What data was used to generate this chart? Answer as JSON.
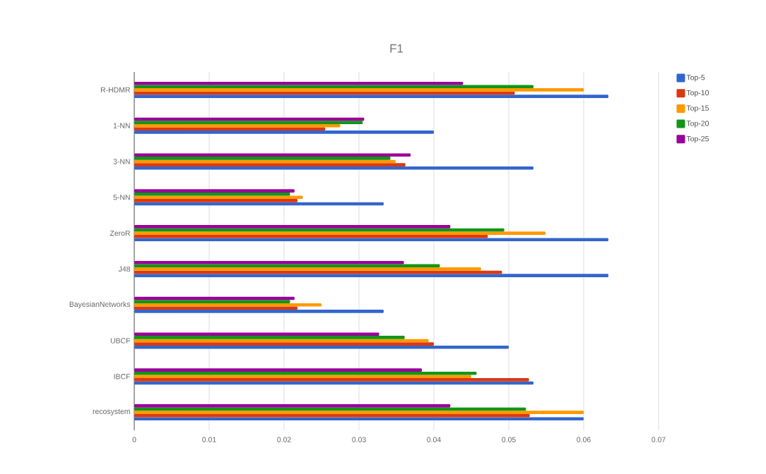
{
  "chart_data": {
    "type": "bar",
    "orientation": "horizontal",
    "title": "F1",
    "categories": [
      "R-HDMR",
      "1-NN",
      "3-NN",
      "5-NN",
      "ZeroR",
      "J48",
      "BayesianNetworks",
      "UBCF",
      "IBCF",
      "recosystem"
    ],
    "series": [
      {
        "name": "Top-5",
        "color": "#3366cc",
        "values": [
          0.0633,
          0.04,
          0.0533,
          0.0333,
          0.0633,
          0.0633,
          0.0333,
          0.05,
          0.0533,
          0.06
        ]
      },
      {
        "name": "Top-10",
        "color": "#dc3912",
        "values": [
          0.0508,
          0.0255,
          0.0362,
          0.0218,
          0.0472,
          0.0491,
          0.0218,
          0.04,
          0.0527,
          0.0528
        ]
      },
      {
        "name": "Top-15",
        "color": "#ff9900",
        "values": [
          0.06,
          0.0275,
          0.0349,
          0.0225,
          0.0549,
          0.0463,
          0.025,
          0.0393,
          0.045,
          0.06
        ]
      },
      {
        "name": "Top-20",
        "color": "#109618",
        "values": [
          0.0533,
          0.0305,
          0.0342,
          0.0208,
          0.0494,
          0.0408,
          0.0208,
          0.0361,
          0.0457,
          0.0523
        ]
      },
      {
        "name": "Top-25",
        "color": "#990099",
        "values": [
          0.0439,
          0.0307,
          0.0369,
          0.0214,
          0.0422,
          0.036,
          0.0214,
          0.0327,
          0.0384,
          0.0422
        ]
      }
    ],
    "xlim": [
      0,
      0.07
    ],
    "xticks": [
      0,
      0.01,
      0.02,
      0.03,
      0.04,
      0.05,
      0.06,
      0.07
    ],
    "grid": "x",
    "legend": "top right"
  }
}
